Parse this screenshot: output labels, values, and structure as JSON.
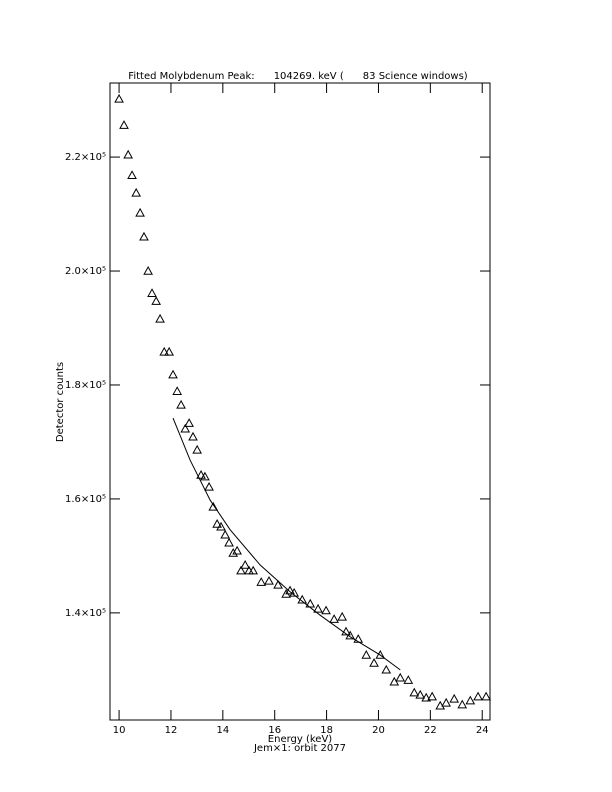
{
  "chart_data": {
    "type": "scatter",
    "title": "Fitted Molybdenum Peak:      104269. keV (      83 Science windows)",
    "xlabel": "Energy (keV)",
    "xlabel2": "Jem×1: orbit 2077",
    "ylabel": "Detector counts",
    "xlim": [
      9.65,
      24.3
    ],
    "ylim": [
      121200,
      233000
    ],
    "xticks": [
      10,
      12,
      14,
      16,
      18,
      20,
      22,
      24
    ],
    "yticks": [
      {
        "value": 140000,
        "label": "1.4×10⁵"
      },
      {
        "value": 160000,
        "label": "1.6×10⁵"
      },
      {
        "value": 180000,
        "label": "1.8×10⁵"
      },
      {
        "value": 200000,
        "label": "2.0×10⁵"
      },
      {
        "value": 220000,
        "label": "2.2×10⁵"
      }
    ],
    "color": "#000000",
    "x": [
      10.0,
      10.19,
      10.35,
      10.5,
      10.66,
      10.81,
      10.96,
      11.12,
      11.27,
      11.43,
      11.58,
      11.74,
      11.93,
      12.08,
      12.24,
      12.39,
      12.55,
      12.7,
      12.85,
      13.01,
      13.16,
      13.31,
      13.47,
      13.63,
      13.78,
      13.93,
      14.09,
      14.24,
      14.4,
      14.55,
      14.7,
      14.86,
      15.01,
      15.17,
      15.48,
      15.78,
      16.13,
      16.44,
      16.59,
      16.75,
      17.06,
      17.37,
      17.67,
      17.98,
      18.29,
      18.6,
      18.75,
      18.91,
      19.22,
      19.53,
      19.83,
      20.07,
      20.3,
      20.61,
      20.84,
      21.15,
      21.38,
      21.61,
      21.84,
      22.07,
      22.38,
      22.61,
      22.92,
      23.23,
      23.54,
      23.84,
      24.15
    ],
    "values": [
      230200,
      225600,
      220400,
      216800,
      213700,
      210200,
      206000,
      200000,
      196100,
      194700,
      191600,
      185800,
      185800,
      181800,
      178900,
      176500,
      172300,
      173300,
      170900,
      168600,
      164200,
      163900,
      162100,
      158600,
      155600,
      155100,
      153700,
      152300,
      150500,
      150900,
      147400,
      148400,
      147400,
      147400,
      145400,
      145600,
      144900,
      143300,
      143900,
      143500,
      142300,
      141600,
      140700,
      140400,
      138900,
      139300,
      136700,
      136000,
      135400,
      132600,
      131200,
      132600,
      130000,
      127900,
      128600,
      128200,
      126000,
      125600,
      125100,
      125300,
      123700,
      124200,
      124900,
      123900,
      124600,
      125300,
      125300
    ],
    "fit": {
      "x": [
        12.08,
        12.74,
        13.51,
        14.28,
        15.44,
        16.59,
        17.75,
        18.91,
        20.07,
        20.84
      ],
      "values": [
        174200,
        166800,
        159800,
        154600,
        148400,
        143700,
        139600,
        135800,
        132600,
        130000
      ]
    }
  }
}
